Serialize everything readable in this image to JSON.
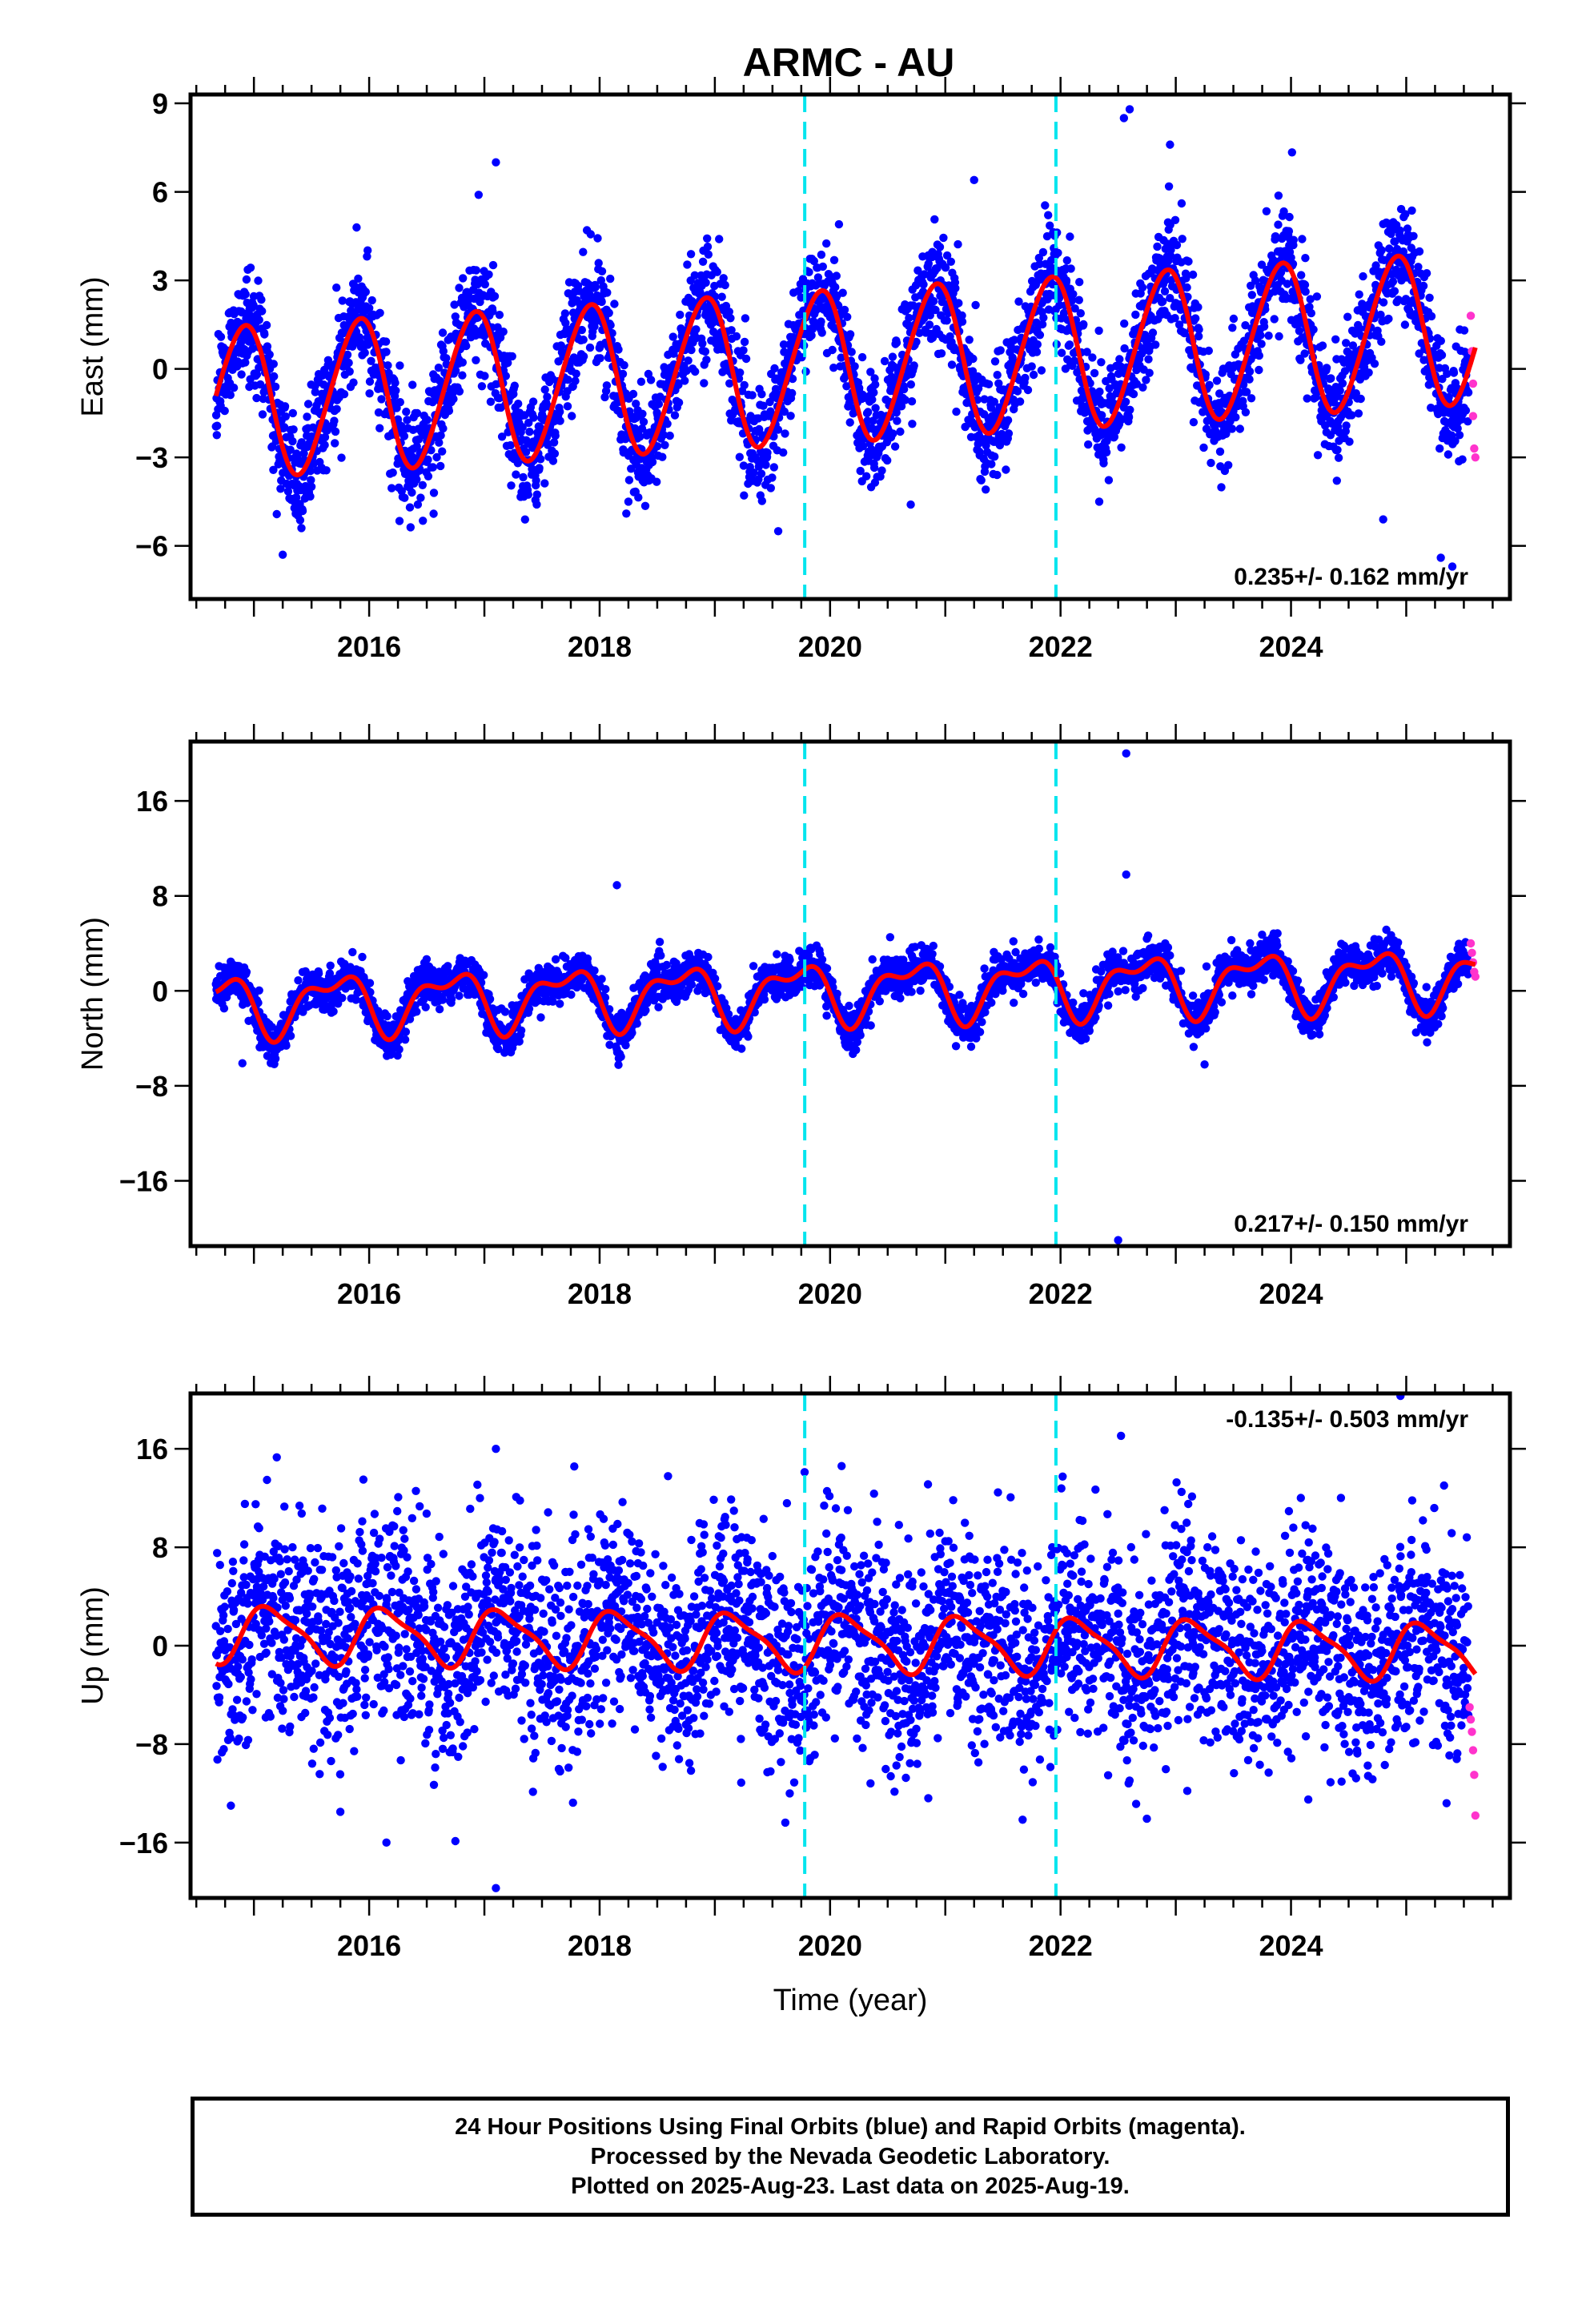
{
  "title": "ARMC - AU",
  "colors": {
    "final_orbits": "#0000ff",
    "rapid_orbits": "#ff33cc",
    "model": "#ff0000",
    "event_marker": "#00e5ee",
    "frame": "#000000"
  },
  "chart_data": [
    {
      "type": "scatter",
      "panel": "east",
      "ylabel": "East (mm)",
      "xlabel": "",
      "xlim": [
        2014.45,
        2025.9
      ],
      "ylim": [
        -7.8,
        9.3
      ],
      "yticks": [
        -6,
        -3,
        0,
        3,
        6,
        9
      ],
      "xticks": [
        2016,
        2018,
        2020,
        2022,
        2024
      ],
      "event_lines": [
        2019.78,
        2021.96
      ],
      "rate_text": "0.235+/- 0.162 mm/yr",
      "model": {
        "start": 2014.67,
        "end": 2025.6,
        "offset": 0.1,
        "trend": 0.235,
        "reference_year": 2020,
        "annual": {
          "cos": 2.1,
          "sin": -1.45
        },
        "semiannual": {
          "cos": 0.2,
          "sin": 0.1
        }
      },
      "scatter_sigma": 0.95,
      "outliers": [
        [
          2015.25,
          -6.3
        ],
        [
          2017.1,
          7.0
        ],
        [
          2016.95,
          5.9
        ],
        [
          2019.55,
          -5.5
        ],
        [
          2020.7,
          -4.6
        ],
        [
          2021.25,
          6.4
        ],
        [
          2022.6,
          8.8
        ],
        [
          2022.55,
          8.5
        ],
        [
          2022.95,
          7.6
        ],
        [
          2024.8,
          -5.1
        ],
        [
          2025.4,
          -6.7
        ],
        [
          2025.3,
          -6.4
        ],
        [
          2018.25,
          -4.5
        ]
      ],
      "rapid_points": [
        [
          2025.56,
          1.8
        ],
        [
          2025.57,
          0.6
        ],
        [
          2025.58,
          -0.5
        ],
        [
          2025.58,
          -1.6
        ],
        [
          2025.59,
          -2.7
        ],
        [
          2025.6,
          -3.0
        ]
      ]
    },
    {
      "type": "scatter",
      "panel": "north",
      "ylabel": "North (mm)",
      "xlabel": "",
      "xlim": [
        2014.45,
        2025.9
      ],
      "ylim": [
        -21.5,
        21.0
      ],
      "yticks": [
        -16,
        -8,
        0,
        8,
        16
      ],
      "xticks": [
        2016,
        2018,
        2020,
        2022,
        2024
      ],
      "event_lines": [
        2019.78,
        2021.96
      ],
      "rate_text": "0.217+/- 0.150 mm/yr",
      "model": {
        "start": 2014.67,
        "end": 2025.6,
        "offset": 0.0,
        "trend": 0.217,
        "reference_year": 2020,
        "annual": {
          "cos": -0.7,
          "sin": -2.1
        },
        "semiannual": {
          "cos": 0.5,
          "sin": -1.0
        }
      },
      "scatter_sigma": 0.85,
      "outliers": [
        [
          2022.57,
          20.0
        ],
        [
          2022.57,
          9.8
        ],
        [
          2018.15,
          8.9
        ],
        [
          2022.5,
          -21.0
        ],
        [
          2023.25,
          -6.2
        ],
        [
          2014.9,
          -6.1
        ]
      ],
      "rapid_points": [
        [
          2025.56,
          4.0
        ],
        [
          2025.57,
          3.2
        ],
        [
          2025.58,
          2.4
        ],
        [
          2025.59,
          1.6
        ],
        [
          2025.6,
          1.2
        ]
      ]
    },
    {
      "type": "scatter",
      "panel": "up",
      "ylabel": "Up (mm)",
      "xlabel": "Time (year)",
      "xlim": [
        2014.45,
        2025.9
      ],
      "ylim": [
        -20.5,
        20.5
      ],
      "yticks": [
        -16,
        -8,
        0,
        8,
        16
      ],
      "xticks": [
        2016,
        2018,
        2020,
        2022,
        2024
      ],
      "event_lines": [
        2019.78,
        2021.96
      ],
      "rate_text": "-0.135+/- 0.503 mm/yr",
      "model": {
        "start": 2014.67,
        "end": 2025.6,
        "offset": 0.3,
        "trend": -0.135,
        "reference_year": 2020,
        "annual": {
          "cos": 1.2,
          "sin": 1.8
        },
        "semiannual": {
          "cos": 0.6,
          "sin": 0.0
        }
      },
      "scatter_sigma": 4.2,
      "outliers": [
        [
          2017.1,
          16.0
        ],
        [
          2017.1,
          -19.7
        ],
        [
          2020.1,
          14.6
        ],
        [
          2016.15,
          -16.0
        ],
        [
          2014.8,
          -13.0
        ],
        [
          2015.75,
          -13.5
        ],
        [
          2019.65,
          -12.0
        ],
        [
          2024.95,
          20.3
        ],
        [
          2025.35,
          -12.8
        ],
        [
          2023.05,
          12.5
        ],
        [
          2023.1,
          -11.8
        ],
        [
          2024.15,
          -12.5
        ],
        [
          2015.95,
          13.5
        ]
      ],
      "rapid_points": [
        [
          2025.55,
          -5.0
        ],
        [
          2025.56,
          -6.0
        ],
        [
          2025.57,
          -7.0
        ],
        [
          2025.58,
          -8.5
        ],
        [
          2025.59,
          -10.5
        ],
        [
          2025.6,
          -13.8
        ]
      ]
    }
  ],
  "footnote": {
    "line1": "24 Hour Positions Using Final Orbits (blue) and Rapid Orbits (magenta).",
    "line2": "Processed by the Nevada Geodetic Laboratory.",
    "line3": "Plotted on 2025-Aug-23. Last data on 2025-Aug-19."
  }
}
